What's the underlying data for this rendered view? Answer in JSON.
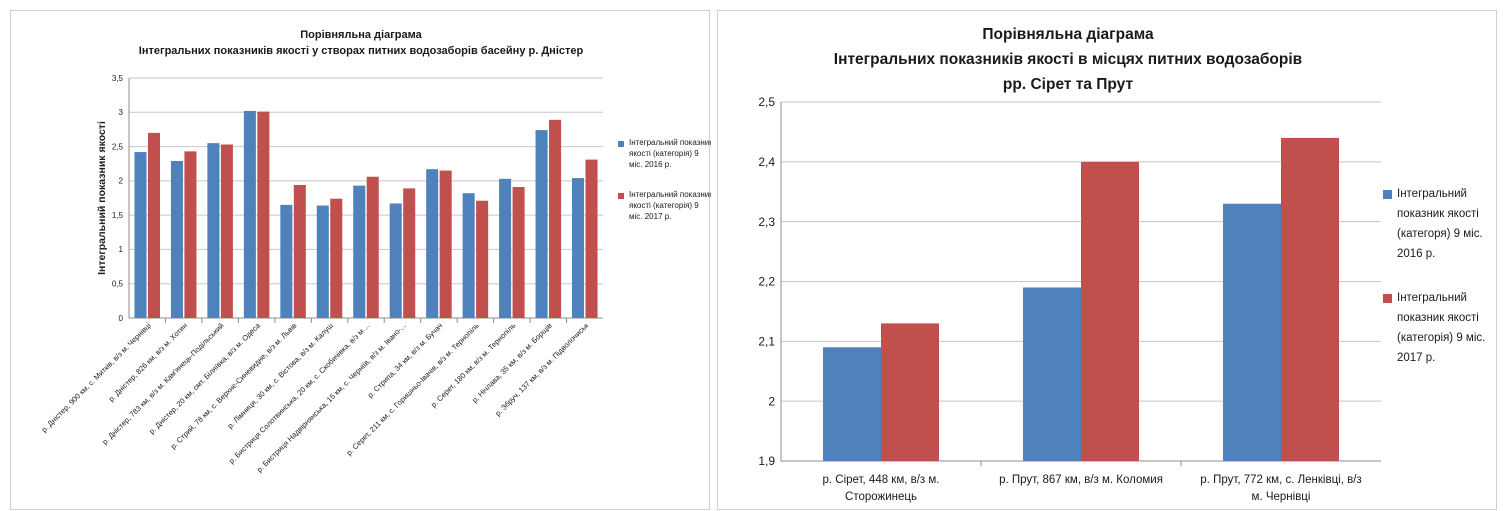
{
  "colors": {
    "series1": "#4f81bd",
    "series2": "#c0504d",
    "grid": "#c8c8c8",
    "axis": "#8c8c8c"
  },
  "chart_data": [
    {
      "type": "bar",
      "title": [
        "Порівняльна діаграма",
        "Інтегральних показників якості  у створах питних водозаборів басейну р. Дністер"
      ],
      "xlabel": "",
      "ylabel": "Інтегральний показник якості",
      "ylim": [
        0,
        3.5
      ],
      "yticks": [
        "0",
        "0,5",
        "1",
        "1,5",
        "2",
        "2,5",
        "3",
        "3,5"
      ],
      "grid": true,
      "legend_position": "right",
      "categories": [
        "р. Дністер, 900 км, с. Митків, в/з м. Чернівці",
        "р. Дністер, 826 км, в/з м. Хотин",
        "р. Дністер, 783 км, в/з м. Кам'янець-Подільський",
        "р. Дністер, 20 км, смт. Біляївка, в/з м. Одеса",
        "р. Стрий, 78 км, с. Верхнє-Синевидне, в/з м. Львів",
        "р. Лімниця, 30 км, с. Вістова, в/з м. Калуш",
        "р. Бистриця Солотвинська, 20 км, с. Скобичівка, в/з м....",
        "р. Бистриця Надвірнянська, 15 км, с. Черніїв, в/з м. Івано-...",
        "р. Стрипа, 34 км, в/з м. Бучач",
        "р. Серет, 211 км, с. Горишньо-Івачів, в/з м. Тернопіль",
        "р. Серет, 180 км, в/з м. Тернопіль",
        "р. Нічлава, 35 км, в/з м. Борщів",
        "р. Збруч, 137 км, в/з м. Підволочиськ"
      ],
      "series": [
        {
          "name": "Інтегральний показник якості (категорія) 9 міс. 2016 р.",
          "values": [
            2.42,
            2.29,
            2.55,
            3.02,
            1.65,
            1.64,
            1.93,
            1.67,
            2.17,
            1.82,
            2.03,
            2.74,
            2.04
          ]
        },
        {
          "name": "Інтегральний показник якості (категорія) 9 міс. 2017 р.",
          "values": [
            2.7,
            2.43,
            2.53,
            3.01,
            1.94,
            1.74,
            2.06,
            1.89,
            2.15,
            1.71,
            1.91,
            2.89,
            2.31
          ]
        }
      ]
    },
    {
      "type": "bar",
      "title": [
        "Порівняльна діаграма",
        "Інтегральних показників якості в місцях питних водозаборів",
        "рр. Сірет та Прут"
      ],
      "xlabel": "",
      "ylabel": "",
      "ylim": [
        1.9,
        2.5
      ],
      "yticks": [
        "1,9",
        "2",
        "2,1",
        "2,2",
        "2,3",
        "2,4",
        "2,5"
      ],
      "grid": true,
      "legend_position": "right",
      "categories": [
        [
          "р. Сірет, 448 км, в/з м.",
          "Сторожинець"
        ],
        [
          "р. Прут, 867 км, в/з м. Коломия"
        ],
        [
          "р. Прут, 772 км, с. Ленківці, в/з",
          "м. Чернівці"
        ]
      ],
      "series": [
        {
          "name": [
            "Інтегральний",
            "показник якості",
            "(категоря) 9 міс.",
            "2016 р."
          ],
          "values": [
            2.09,
            2.19,
            2.33
          ]
        },
        {
          "name": [
            "Інтегральний",
            "показник якості",
            "(категорія) 9 міс.",
            "2017 р."
          ],
          "values": [
            2.13,
            2.4,
            2.44
          ]
        }
      ]
    }
  ]
}
